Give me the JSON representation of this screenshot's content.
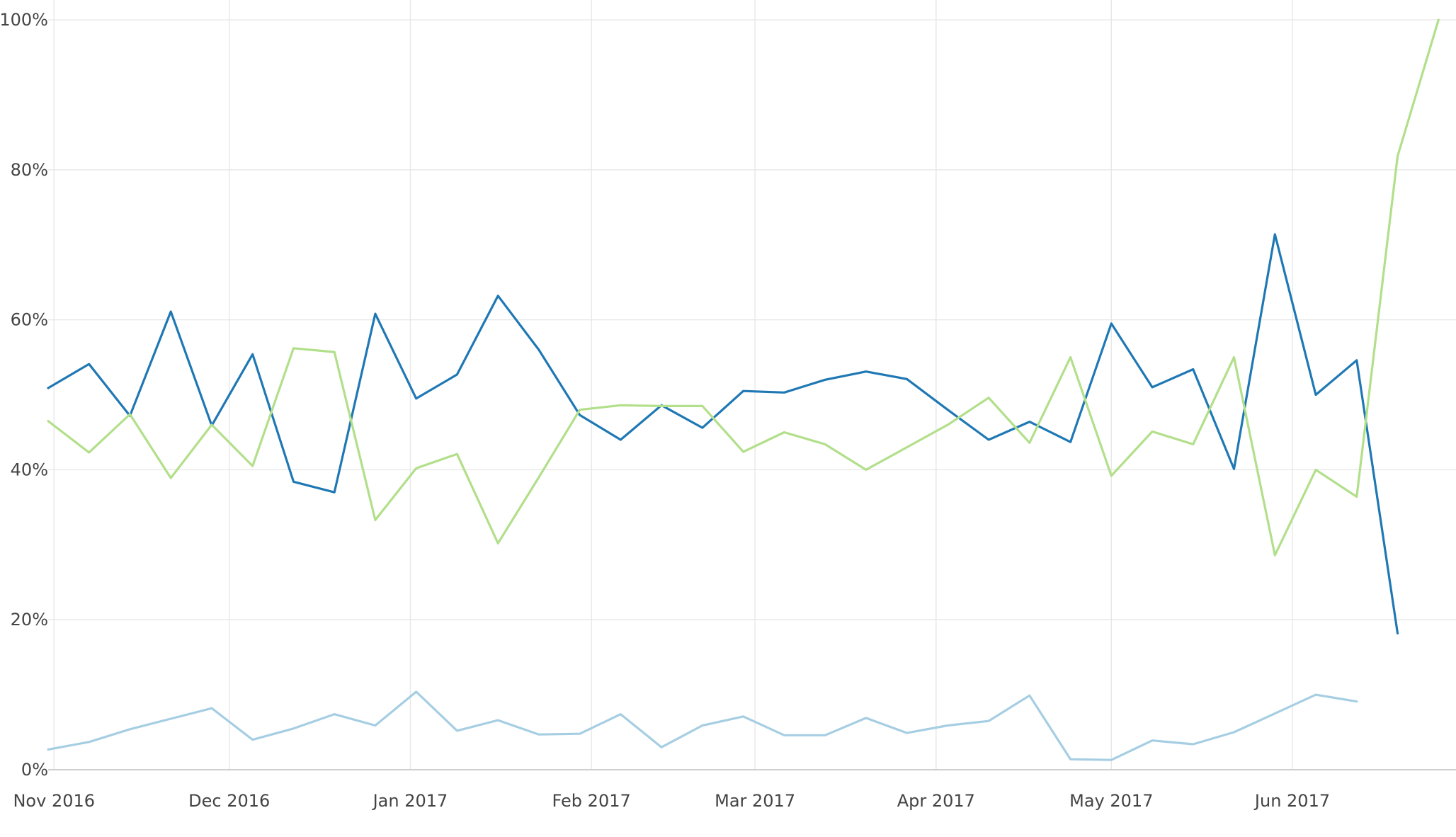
{
  "chart_data": {
    "type": "line",
    "title": "",
    "xlabel": "",
    "ylabel": "",
    "x_axis_type": "date",
    "xlim": [
      "2016-10-31",
      "2017-06-29"
    ],
    "ylim": [
      0,
      100
    ],
    "y_tick_values": [
      0,
      20,
      40,
      60,
      80,
      100
    ],
    "y_tick_labels": [
      "0%",
      "20%",
      "40%",
      "60%",
      "80%",
      "100%"
    ],
    "x_ticks": [
      {
        "date": "2016-11-01",
        "label": "Nov 2016"
      },
      {
        "date": "2016-12-01",
        "label": "Dec 2016"
      },
      {
        "date": "2017-01-01",
        "label": "Jan 2017"
      },
      {
        "date": "2017-02-01",
        "label": "Feb 2017"
      },
      {
        "date": "2017-03-01",
        "label": "Mar 2017"
      },
      {
        "date": "2017-04-01",
        "label": "Apr 2017"
      },
      {
        "date": "2017-05-01",
        "label": "May 2017"
      },
      {
        "date": "2017-06-01",
        "label": "Jun 2017"
      }
    ],
    "grid": true,
    "legend": "none",
    "series": [
      {
        "color": "#1f78b4",
        "x": [
          "2016-10-31",
          "2016-11-07",
          "2016-11-14",
          "2016-11-21",
          "2016-11-28",
          "2016-12-05",
          "2016-12-12",
          "2016-12-19",
          "2016-12-26",
          "2017-01-02",
          "2017-01-09",
          "2017-01-16",
          "2017-01-23",
          "2017-01-30",
          "2017-02-06",
          "2017-02-13",
          "2017-02-20",
          "2017-02-27",
          "2017-03-06",
          "2017-03-13",
          "2017-03-20",
          "2017-03-27",
          "2017-04-03",
          "2017-04-10",
          "2017-04-17",
          "2017-04-24",
          "2017-05-01",
          "2017-05-08",
          "2017-05-15",
          "2017-05-22",
          "2017-05-29",
          "2017-06-05",
          "2017-06-12",
          "2017-06-19"
        ],
        "y": [
          50.9,
          54.1,
          47.2,
          61.1,
          45.9,
          55.4,
          38.4,
          37.0,
          60.8,
          49.5,
          52.7,
          63.2,
          56.0,
          47.3,
          44.0,
          48.6,
          45.6,
          50.5,
          50.3,
          52.0,
          53.1,
          52.1,
          48.0,
          44.0,
          46.4,
          43.7,
          59.5,
          51.0,
          53.4,
          40.1,
          71.4,
          50.0,
          54.6,
          18.2
        ]
      },
      {
        "color": "#b2df8a",
        "x": [
          "2016-10-31",
          "2016-11-07",
          "2016-11-14",
          "2016-11-21",
          "2016-11-28",
          "2016-12-05",
          "2016-12-12",
          "2016-12-19",
          "2016-12-26",
          "2017-01-02",
          "2017-01-09",
          "2017-01-16",
          "2017-01-23",
          "2017-01-30",
          "2017-02-06",
          "2017-02-13",
          "2017-02-20",
          "2017-02-27",
          "2017-03-06",
          "2017-03-13",
          "2017-03-20",
          "2017-03-27",
          "2017-04-03",
          "2017-04-10",
          "2017-04-17",
          "2017-04-24",
          "2017-05-01",
          "2017-05-08",
          "2017-05-15",
          "2017-05-22",
          "2017-05-29",
          "2017-06-05",
          "2017-06-12",
          "2017-06-19",
          "2017-06-26"
        ],
        "y": [
          46.5,
          42.3,
          47.4,
          38.9,
          46.0,
          40.5,
          56.2,
          55.7,
          33.3,
          40.2,
          42.1,
          30.2,
          39.0,
          48.0,
          48.6,
          48.5,
          48.5,
          42.4,
          45.0,
          43.4,
          40.0,
          43.0,
          46.0,
          49.6,
          43.6,
          55.0,
          39.2,
          45.1,
          43.4,
          55.0,
          28.6,
          40.0,
          36.4,
          81.8,
          100.0
        ]
      },
      {
        "color": "#a6cee3",
        "x": [
          "2016-10-31",
          "2016-11-07",
          "2016-11-14",
          "2016-11-21",
          "2016-11-28",
          "2016-12-05",
          "2016-12-12",
          "2016-12-19",
          "2016-12-26",
          "2017-01-02",
          "2017-01-09",
          "2017-01-16",
          "2017-01-23",
          "2017-01-30",
          "2017-02-06",
          "2017-02-13",
          "2017-02-20",
          "2017-02-27",
          "2017-03-06",
          "2017-03-13",
          "2017-03-20",
          "2017-03-27",
          "2017-04-03",
          "2017-04-10",
          "2017-04-17",
          "2017-04-24",
          "2017-05-01",
          "2017-05-08",
          "2017-05-15",
          "2017-05-22",
          "2017-05-29",
          "2017-06-05",
          "2017-06-12"
        ],
        "y": [
          2.7,
          3.7,
          5.4,
          6.8,
          8.2,
          4.0,
          5.5,
          7.4,
          5.9,
          10.4,
          5.2,
          6.6,
          4.7,
          4.8,
          7.4,
          3.0,
          5.9,
          7.1,
          4.6,
          4.6,
          6.9,
          4.9,
          5.9,
          6.5,
          9.9,
          1.4,
          1.3,
          3.9,
          3.4,
          5.0,
          7.5,
          10.0,
          9.1
        ]
      }
    ]
  }
}
